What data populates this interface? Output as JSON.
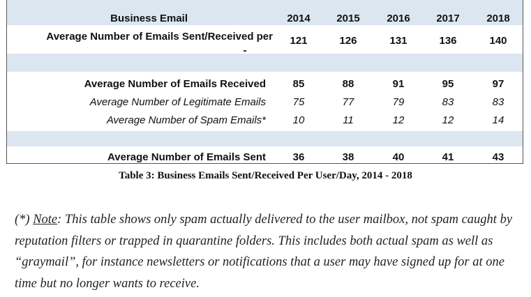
{
  "table": {
    "header": {
      "label": "Business Email",
      "years": [
        "2014",
        "2015",
        "2016",
        "2017",
        "2018"
      ]
    },
    "rows": [
      {
        "label": "Average Number of Emails Sent/Received per",
        "values": [
          "121",
          "126",
          "131",
          "136",
          "140"
        ]
      },
      {
        "label": "Average Number of Emails Received",
        "values": [
          "85",
          "88",
          "91",
          "95",
          "97"
        ]
      },
      {
        "label": "Average Number of Legitimate Emails",
        "values": [
          "75",
          "77",
          "79",
          "83",
          "83"
        ]
      },
      {
        "label": "Average Number of Spam Emails*",
        "values": [
          "10",
          "11",
          "12",
          "12",
          "14"
        ]
      },
      {
        "label": "Average Number of Emails Sent",
        "values": [
          "36",
          "38",
          "40",
          "41",
          "43"
        ]
      }
    ],
    "shade_color": "#dce6f1"
  },
  "caption": "Table 3: Business Emails Sent/Received Per User/Day, 2014 - 2018",
  "note": {
    "prefix": "(*) ",
    "keyword": "Note",
    "text": ": This table shows only spam actually delivered to the user mailbox, not spam caught by reputation filters or trapped in quarantine folders. This includes both actual spam as well as “graymail”, for instance newsletters or notifications that a user may have signed up for at one time but no longer wants to receive."
  }
}
